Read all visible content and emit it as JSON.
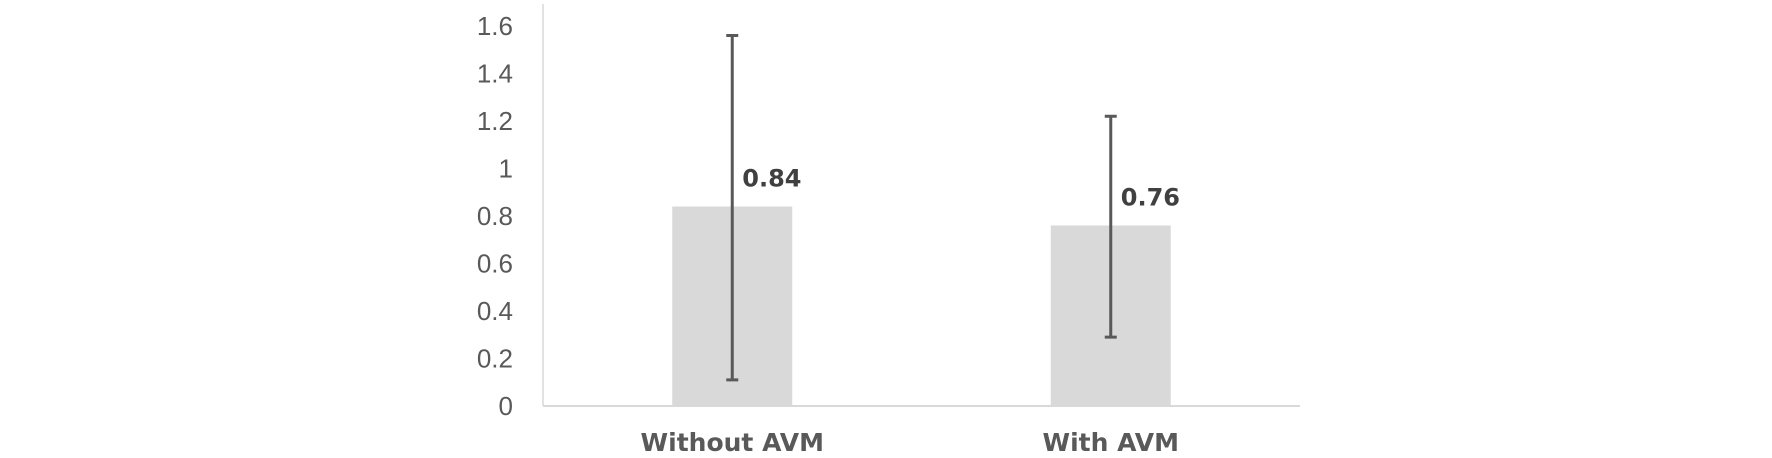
{
  "chart_data": {
    "type": "bar",
    "title": "",
    "xlabel": "",
    "ylabel": "",
    "categories": [
      "Without AVM",
      "With AVM"
    ],
    "values": [
      0.84,
      0.76
    ],
    "value_labels": [
      "0.84",
      "0.76"
    ],
    "error_bars": [
      {
        "low": 0.11,
        "high": 1.56
      },
      {
        "low": 0.29,
        "high": 1.22
      }
    ],
    "ylim": [
      0,
      1.6
    ],
    "yticks": [
      0,
      0.2,
      0.4,
      0.6,
      0.8,
      1,
      1.2,
      1.4,
      1.6
    ],
    "ytick_labels": [
      "0",
      "0.2",
      "0.4",
      "0.6",
      "0.8",
      "1",
      "1.2",
      "1.4",
      "1.6"
    ],
    "grid": false,
    "legend": "none",
    "colors": {
      "bar": "#d9d9d9",
      "error_bar": "#595959",
      "axis": "#d9d9d9",
      "text": "#595959",
      "data_label": "#404040"
    }
  }
}
